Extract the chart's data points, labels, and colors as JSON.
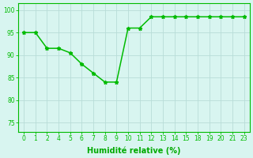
{
  "hours": [
    0,
    1,
    2,
    4,
    5,
    6,
    7,
    8,
    9,
    10,
    11,
    12,
    13,
    14,
    15,
    18,
    19,
    20,
    21,
    23
  ],
  "y": [
    95,
    95,
    91.5,
    91.5,
    90.5,
    88,
    86,
    84,
    84,
    96,
    96,
    98.5,
    98.5,
    98.5,
    98.5,
    98.5,
    98.5,
    98.5,
    98.5,
    98.5
  ],
  "line_color": "#00bb00",
  "marker": "*",
  "marker_size": 3.5,
  "background_color": "#d8f5f0",
  "grid_color": "#b8ddd8",
  "xlabel": "Humidité relative (%)",
  "xlabel_color": "#00aa00",
  "xlim": [
    -0.5,
    19.5
  ],
  "ylim": [
    73,
    101.5
  ],
  "yticks": [
    75,
    80,
    85,
    90,
    95,
    100
  ],
  "tick_color": "#00bb00",
  "tick_fontsize": 5.5,
  "xlabel_fontsize": 7,
  "line_width": 1.1
}
